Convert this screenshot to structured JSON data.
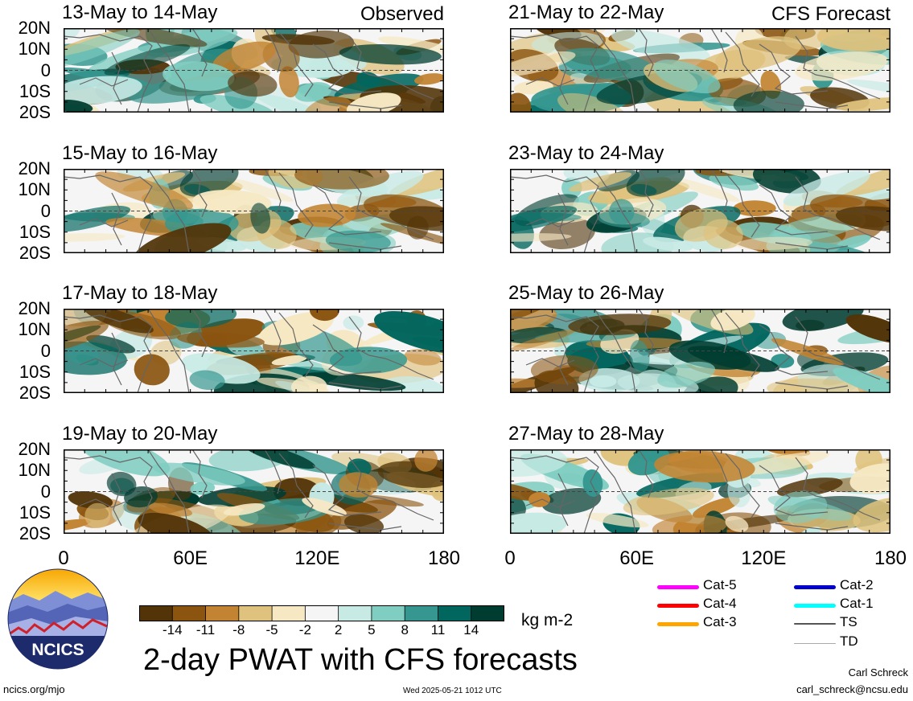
{
  "observed_panels": [
    {
      "title": "13-May to 14-May",
      "tag": "Observed"
    },
    {
      "title": "15-May to 16-May",
      "tag": ""
    },
    {
      "title": "17-May to 18-May",
      "tag": ""
    },
    {
      "title": "19-May to 20-May",
      "tag": ""
    }
  ],
  "forecast_panels": [
    {
      "title": "21-May to 22-May",
      "tag": "CFS Forecast"
    },
    {
      "title": "23-May to 24-May",
      "tag": ""
    },
    {
      "title": "25-May to 26-May",
      "tag": ""
    },
    {
      "title": "27-May to 28-May",
      "tag": ""
    }
  ],
  "lat_labels": [
    "20N",
    "10N",
    "0",
    "10S",
    "20S"
  ],
  "lon_labels": [
    "0",
    "60E",
    "120E",
    "180"
  ],
  "colorbar": {
    "ticks": [
      "-14",
      "-11",
      "-8",
      "-5",
      "-2",
      "2",
      "5",
      "8",
      "11",
      "14"
    ],
    "colors": [
      "#523408",
      "#8b5510",
      "#c28433",
      "#dfc27d",
      "#f6e8c3",
      "#f5f5f5",
      "#c7eae5",
      "#80cdc1",
      "#35978f",
      "#01665e",
      "#003c30"
    ],
    "unit": "kg m-2"
  },
  "legend": {
    "items": [
      {
        "label": "Cat-5",
        "color": "#ff00ff"
      },
      {
        "label": "Cat-4",
        "color": "#ff0000"
      },
      {
        "label": "Cat-3",
        "color": "#ffa500"
      },
      {
        "label": "Cat-2",
        "color": "#0000cc"
      },
      {
        "label": "Cat-1",
        "color": "#00ffff"
      },
      {
        "label": "TS",
        "color": "#555555"
      },
      {
        "label": "TD",
        "color": "#aaaaaa"
      }
    ]
  },
  "logo_text": "NCICS",
  "main_title": "2-day PWAT with CFS forecasts",
  "author": "Carl Schreck",
  "email": "carl_schreck@ncsu.edu",
  "website": "ncics.org/mjo",
  "timestamp": "Wed 2025-05-21 1012 UTC"
}
